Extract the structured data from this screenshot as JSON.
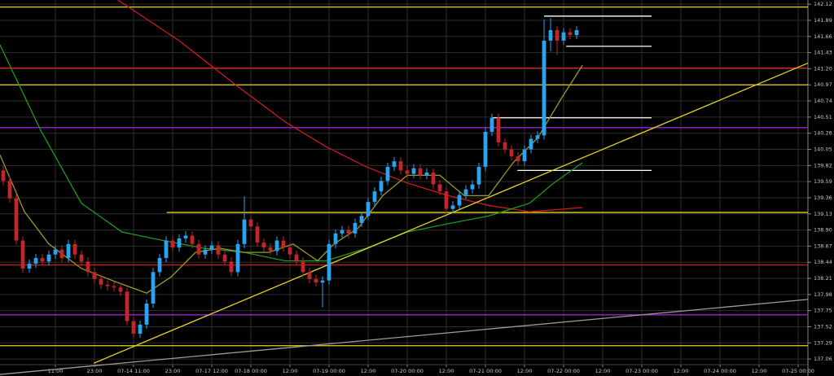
{
  "chart_data": {
    "type": "candlestick",
    "up_color": "#2aa3f0",
    "down_color": "#c0262a",
    "grid": true,
    "grid_color": "#2e2e2e",
    "xlim": [
      -0.5,
      123.5
    ],
    "ylim": [
      136.98,
      142.18
    ],
    "xticks": [
      {
        "value": 8,
        "label": "11:00"
      },
      {
        "value": 14,
        "label": "23:00"
      },
      {
        "value": 20,
        "label": "07-14 11:00"
      },
      {
        "value": 26,
        "label": "23:00"
      },
      {
        "value": 32,
        "label": "07-17 12:00"
      },
      {
        "value": 38,
        "label": "07-18 00:00"
      },
      {
        "value": 44,
        "label": "12:00"
      },
      {
        "value": 50,
        "label": "07-19 00:00"
      },
      {
        "value": 56,
        "label": "12:00"
      },
      {
        "value": 62,
        "label": "07-20 00:00"
      },
      {
        "value": 68,
        "label": "12:00"
      },
      {
        "value": 74,
        "label": "07-21 00:00"
      },
      {
        "value": 80,
        "label": "12:00"
      },
      {
        "value": 86,
        "label": "07-22 00:00"
      },
      {
        "value": 92,
        "label": "12:00"
      },
      {
        "value": 98,
        "label": "07-23 00:00"
      },
      {
        "value": 104,
        "label": "12:00"
      },
      {
        "value": 110,
        "label": "07-24 00:00"
      },
      {
        "value": 116,
        "label": "12:00"
      },
      {
        "value": 122,
        "label": "07-25 00:00"
      }
    ],
    "yticks": [
      {
        "value": 142.12,
        "label": "142.12"
      },
      {
        "value": 141.89,
        "label": "141.89"
      },
      {
        "value": 141.66,
        "label": "141.66"
      },
      {
        "value": 141.43,
        "label": "141.43"
      },
      {
        "value": 141.2,
        "label": "141.20"
      },
      {
        "value": 140.97,
        "label": "140.97"
      },
      {
        "value": 140.74,
        "label": "140.74"
      },
      {
        "value": 140.51,
        "label": "140.51"
      },
      {
        "value": 140.28,
        "label": "140.28"
      },
      {
        "value": 140.05,
        "label": "140.05"
      },
      {
        "value": 139.82,
        "label": "139.82"
      },
      {
        "value": 139.59,
        "label": "139.59"
      },
      {
        "value": 139.36,
        "label": "139.36"
      },
      {
        "value": 139.13,
        "label": "139.13"
      },
      {
        "value": 138.9,
        "label": "138.90"
      },
      {
        "value": 138.67,
        "label": "138.67"
      },
      {
        "value": 138.44,
        "label": "138.44"
      },
      {
        "value": 138.21,
        "label": "138.21"
      },
      {
        "value": 137.98,
        "label": "137.98"
      },
      {
        "value": 137.75,
        "label": "137.75"
      },
      {
        "value": 137.52,
        "label": "137.52"
      },
      {
        "value": 137.29,
        "label": "137.29"
      },
      {
        "value": 137.06,
        "label": "137.06"
      }
    ],
    "x": [
      0,
      1,
      2,
      3,
      4,
      5,
      6,
      7,
      8,
      9,
      10,
      11,
      12,
      13,
      14,
      15,
      16,
      17,
      18,
      19,
      20,
      21,
      22,
      23,
      24,
      25,
      26,
      27,
      28,
      29,
      30,
      31,
      32,
      33,
      34,
      35,
      36,
      37,
      38,
      39,
      40,
      41,
      42,
      43,
      44,
      45,
      46,
      47,
      48,
      49,
      50,
      51,
      52,
      53,
      54,
      55,
      56,
      57,
      58,
      59,
      60,
      61,
      62,
      63,
      64,
      65,
      66,
      67,
      68,
      69,
      70,
      71,
      72,
      73,
      74,
      75,
      76,
      77,
      78,
      79,
      80,
      81,
      82,
      83,
      84,
      85,
      86,
      87,
      88
    ],
    "open": [
      139.75,
      139.6,
      139.35,
      138.75,
      138.35,
      138.42,
      138.5,
      138.45,
      138.55,
      138.62,
      138.5,
      138.7,
      138.55,
      138.45,
      138.3,
      138.2,
      138.12,
      138.1,
      138.08,
      138.02,
      137.6,
      137.42,
      137.55,
      137.85,
      138.3,
      138.5,
      138.75,
      138.65,
      138.78,
      138.82,
      138.7,
      138.55,
      138.62,
      138.68,
      138.55,
      138.45,
      138.3,
      138.7,
      139.05,
      138.95,
      138.72,
      138.65,
      138.6,
      138.75,
      138.65,
      138.55,
      138.45,
      138.3,
      138.2,
      138.15,
      138.18,
      138.7,
      138.85,
      138.9,
      138.85,
      139,
      139.1,
      139.3,
      139.45,
      139.6,
      139.8,
      139.88,
      139.75,
      139.7,
      139.78,
      139.68,
      139.72,
      139.55,
      139.45,
      139.2,
      139.25,
      139.4,
      139.48,
      139.55,
      139.8,
      140.3,
      140.5,
      140.15,
      140.05,
      139.95,
      139.88,
      140.05,
      140.2,
      140.25,
      141.6,
      141.75,
      141.6,
      141.72,
      141.68
    ],
    "high": [
      139.81,
      139.66,
      139.41,
      138.81,
      138.48,
      138.56,
      138.56,
      138.61,
      138.68,
      138.68,
      138.76,
      138.76,
      138.61,
      138.51,
      138.36,
      138.26,
      138.18,
      138.16,
      138.14,
      138.08,
      137.66,
      137.61,
      137.91,
      138.36,
      138.56,
      138.81,
      138.81,
      138.84,
      138.88,
      138.88,
      138.76,
      138.68,
      138.74,
      138.74,
      138.61,
      138.51,
      138.76,
      139.38,
      139.11,
      139.01,
      138.78,
      138.71,
      138.81,
      138.81,
      138.71,
      138.61,
      138.51,
      138.36,
      138.26,
      138.24,
      138.76,
      138.91,
      138.96,
      138.96,
      139.06,
      139.16,
      139.36,
      139.51,
      139.66,
      139.86,
      139.94,
      139.94,
      139.81,
      139.84,
      139.84,
      139.78,
      139.78,
      139.61,
      139.51,
      139.31,
      139.46,
      139.54,
      139.61,
      139.86,
      140.36,
      140.56,
      140.56,
      140.21,
      140.11,
      140.01,
      140.11,
      140.26,
      140.31,
      141.9,
      141.92,
      141.81,
      141.78,
      141.78,
      141.81
    ],
    "low": [
      139.54,
      139.29,
      138.69,
      138.29,
      138.29,
      138.36,
      138.39,
      138.39,
      138.49,
      138.44,
      138.44,
      138.49,
      138.39,
      138.24,
      138.14,
      138.06,
      138.04,
      138.02,
      137.96,
      137.54,
      137.36,
      137.36,
      137.49,
      137.79,
      138.24,
      138.44,
      138.59,
      138.59,
      138.72,
      138.64,
      138.49,
      138.49,
      138.56,
      138.49,
      138.39,
      138.24,
      138.24,
      138.64,
      138.89,
      138.66,
      138.59,
      138.54,
      138.54,
      138.59,
      138.49,
      138.39,
      138.24,
      138.14,
      138.09,
      137.8,
      138.12,
      138.64,
      138.79,
      138.79,
      138.79,
      138.94,
      139.04,
      139.24,
      139.39,
      139.54,
      139.74,
      139.69,
      139.64,
      139.64,
      139.62,
      139.62,
      139.49,
      139.39,
      139.14,
      139.14,
      139.19,
      139.34,
      139.42,
      139.49,
      139.74,
      140.24,
      140.09,
      139.99,
      139.89,
      139.82,
      139.82,
      139.99,
      140.14,
      140.19,
      141.45,
      141.4,
      141.54,
      141.62,
      141.62
    ],
    "close": [
      139.6,
      139.35,
      138.75,
      138.35,
      138.42,
      138.5,
      138.45,
      138.55,
      138.62,
      138.5,
      138.7,
      138.55,
      138.45,
      138.3,
      138.2,
      138.12,
      138.1,
      138.08,
      138.02,
      137.6,
      137.42,
      137.55,
      137.85,
      138.3,
      138.5,
      138.75,
      138.65,
      138.78,
      138.82,
      138.7,
      138.55,
      138.62,
      138.68,
      138.55,
      138.45,
      138.3,
      138.7,
      139.05,
      138.95,
      138.72,
      138.65,
      138.6,
      138.75,
      138.65,
      138.55,
      138.45,
      138.3,
      138.2,
      138.15,
      138.18,
      138.7,
      138.85,
      138.9,
      138.85,
      139,
      139.1,
      139.3,
      139.45,
      139.6,
      139.8,
      139.88,
      139.75,
      139.7,
      139.78,
      139.68,
      139.72,
      139.55,
      139.45,
      139.2,
      139.25,
      139.4,
      139.48,
      139.55,
      139.8,
      140.3,
      140.5,
      140.15,
      140.05,
      139.95,
      139.88,
      140.05,
      140.2,
      140.25,
      141.6,
      141.75,
      141.6,
      141.72,
      141.68,
      141.75
    ],
    "overlays": [
      {
        "color": "#d11a1a",
        "x": [
          17.6,
          27,
          35.8,
          43.3,
          49.5,
          55.75,
          62,
          68.3,
          74.5,
          80.75,
          88.9
        ],
        "values": [
          142.18,
          141.6,
          140.96,
          140.44,
          140.09,
          139.8,
          139.57,
          139.39,
          139.25,
          139.16,
          139.22
        ]
      },
      {
        "color": "#1f9a1f",
        "x": [
          -0.5,
          5.75,
          12,
          18.25,
          24.5,
          30.75,
          37,
          43.25,
          49.5,
          55.75,
          62,
          68.25,
          74.5,
          80.75,
          84.5,
          88.9
        ],
        "values": [
          141.54,
          140.32,
          139.28,
          138.87,
          138.75,
          138.64,
          138.58,
          138.46,
          138.46,
          138.64,
          138.87,
          138.99,
          139.1,
          139.28,
          139.57,
          139.86
        ]
      },
      {
        "color": "#9a9a2a",
        "x": [
          -0.5,
          3.25,
          7,
          12,
          17,
          22,
          25.75,
          29.5,
          33.25,
          37,
          40.75,
          44.5,
          48.25,
          50.75,
          54.5,
          58.25,
          62,
          67,
          70.75,
          74.5,
          78.25,
          82,
          85.75,
          88.9
        ],
        "values": [
          139.97,
          139.16,
          138.7,
          138.35,
          138.17,
          138,
          138.23,
          138.58,
          138.64,
          138.58,
          138.58,
          138.7,
          138.46,
          138.7,
          138.93,
          139.39,
          139.68,
          139.68,
          139.39,
          139.39,
          139.86,
          140.21,
          140.79,
          141.25
        ]
      },
      {
        "color": "#e6d31e",
        "x": [
          13.9,
          123.5
        ],
        "values": [
          137,
          141.28
        ]
      },
      {
        "color": "#9a9a9a",
        "x": [
          -0.5,
          123.5
        ],
        "values": [
          136.84,
          137.91
        ]
      }
    ],
    "levels": [
      {
        "value": 142.08,
        "color": "#e6d31e"
      },
      {
        "value": 141.21,
        "color": "#d11a1a"
      },
      {
        "value": 140.97,
        "color": "#e6d31e"
      },
      {
        "value": 140.36,
        "color": "#a020d0"
      },
      {
        "value": 139.15,
        "color": "#e6d31e",
        "x": [
          25.1,
          123.5
        ]
      },
      {
        "value": 138.4,
        "color": "#d11a1a"
      },
      {
        "value": 137.69,
        "color": "#a020d0"
      },
      {
        "value": 137.25,
        "color": "#e6d31e"
      },
      {
        "value": 141.95,
        "color": "#ffffff",
        "x": [
          83,
          99.5
        ]
      },
      {
        "value": 141.52,
        "color": "#ffffff",
        "x": [
          86.4,
          99.5
        ]
      },
      {
        "value": 140.5,
        "color": "#ffffff",
        "x": [
          75.1,
          99.5
        ]
      },
      {
        "value": 139.75,
        "color": "#ffffff",
        "x": [
          78.9,
          99.5
        ]
      }
    ]
  }
}
